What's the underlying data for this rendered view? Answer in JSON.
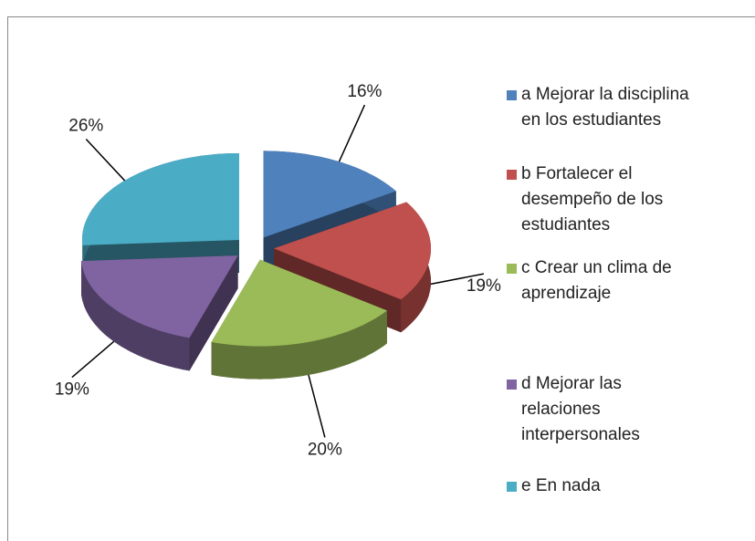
{
  "chart_data": {
    "type": "pie3d",
    "categories": [
      "a Mejorar la disciplina en los estudiantes",
      "b Fortalecer el desempeño de los estudiantes",
      "c Crear un clima de aprendizaje",
      "d Mejorar las relaciones interpersonales",
      "e En nada"
    ],
    "values": [
      16,
      19,
      20,
      19,
      26
    ],
    "value_labels": [
      "16%",
      "19%",
      "20%",
      "19%",
      "26%"
    ],
    "colors": [
      "#4f81bd",
      "#c0504d",
      "#9bbb59",
      "#8064a2",
      "#4bacc6"
    ],
    "legend": "right"
  }
}
